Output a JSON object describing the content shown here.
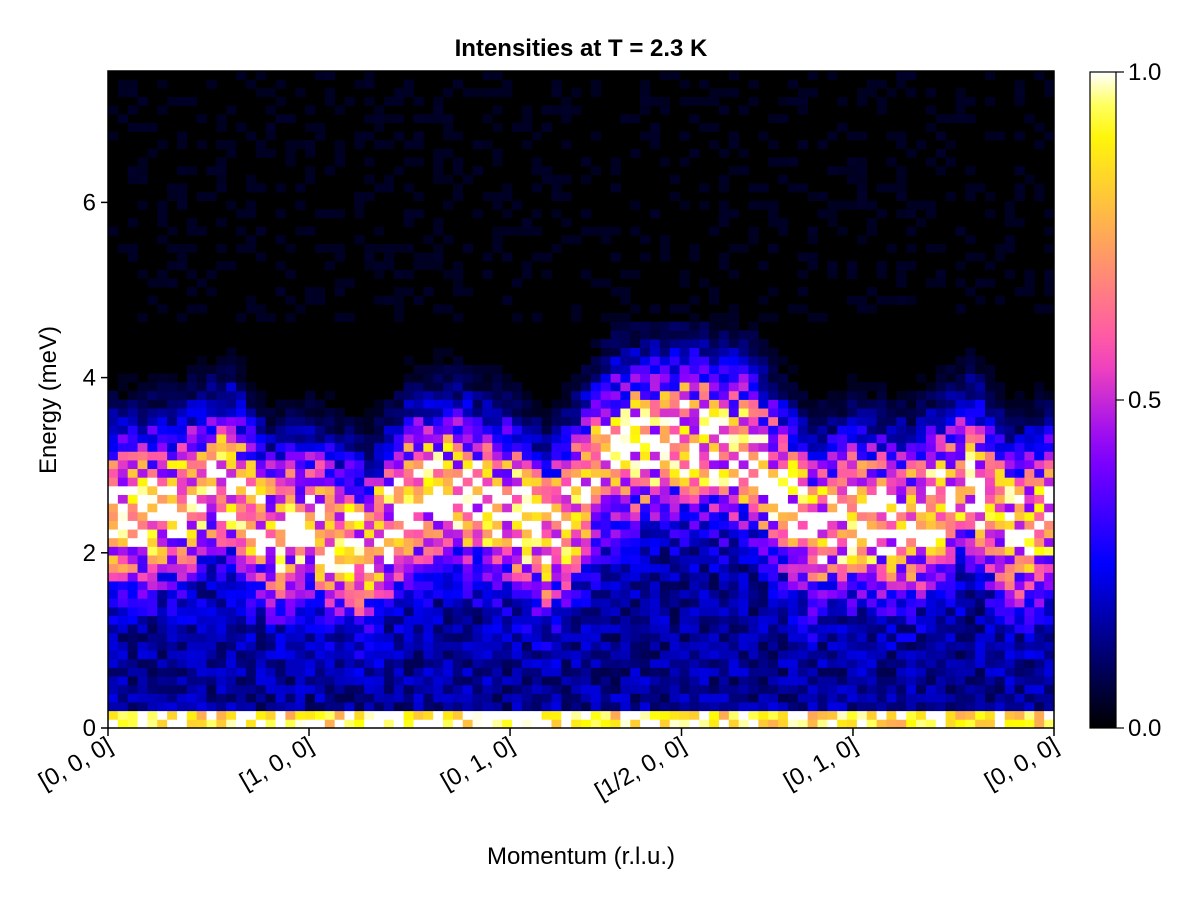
{
  "chart_data": {
    "type": "heatmap",
    "title": "Intensities at T = 2.3 K",
    "xlabel": "Momentum (r.l.u.)",
    "ylabel": "Energy (meV)",
    "x_ticks": [
      {
        "position": 0.0,
        "label": "[0, 0, 0]"
      },
      {
        "position": 1.0,
        "label": "[1, 0, 0]"
      },
      {
        "position": 2.0,
        "label": "[0, 1, 0]"
      },
      {
        "position": 2.853,
        "label": "[1/2, 0, 0]"
      },
      {
        "position": 3.706,
        "label": "[0, 1, 0]"
      },
      {
        "position": 4.706,
        "label": "[0, 0, 0]"
      }
    ],
    "xlim": [
      0,
      4.706
    ],
    "ylim": [
      0,
      7.5
    ],
    "y_ticks": [
      0,
      2,
      4,
      6
    ],
    "colorbar": {
      "colormap": "gnuplot2",
      "range": [
        0.0,
        1.0
      ],
      "ticks": [
        {
          "value": 0.0,
          "label": "0.0"
        },
        {
          "value": 0.5,
          "label": "0.5"
        },
        {
          "value": 1.0,
          "label": "1.0"
        }
      ]
    },
    "grid": false,
    "data_description": "Noisy spin-wave intensity map: bright dispersive bands between 1.5 and 3.8 meV, strong elastic line near 0-0.15 meV, near-zero intensity above 4.5 meV.",
    "band_center_meV": [
      {
        "x": 0.0,
        "e": 2.5
      },
      {
        "x": 0.35,
        "e": 2.6
      },
      {
        "x": 0.6,
        "e": 2.9
      },
      {
        "x": 0.8,
        "e": 2.3
      },
      {
        "x": 1.0,
        "e": 2.4
      },
      {
        "x": 1.3,
        "e": 2.1
      },
      {
        "x": 1.5,
        "e": 2.7
      },
      {
        "x": 1.7,
        "e": 2.8
      },
      {
        "x": 2.0,
        "e": 2.6
      },
      {
        "x": 2.2,
        "e": 2.2
      },
      {
        "x": 2.5,
        "e": 3.2
      },
      {
        "x": 2.853,
        "e": 3.4
      },
      {
        "x": 3.2,
        "e": 3.2
      },
      {
        "x": 3.5,
        "e": 2.3
      },
      {
        "x": 3.706,
        "e": 2.5
      },
      {
        "x": 4.0,
        "e": 2.4
      },
      {
        "x": 4.3,
        "e": 2.9
      },
      {
        "x": 4.5,
        "e": 2.3
      },
      {
        "x": 4.706,
        "e": 2.5
      }
    ],
    "grid_size": {
      "nx": 96,
      "ny": 76
    }
  }
}
